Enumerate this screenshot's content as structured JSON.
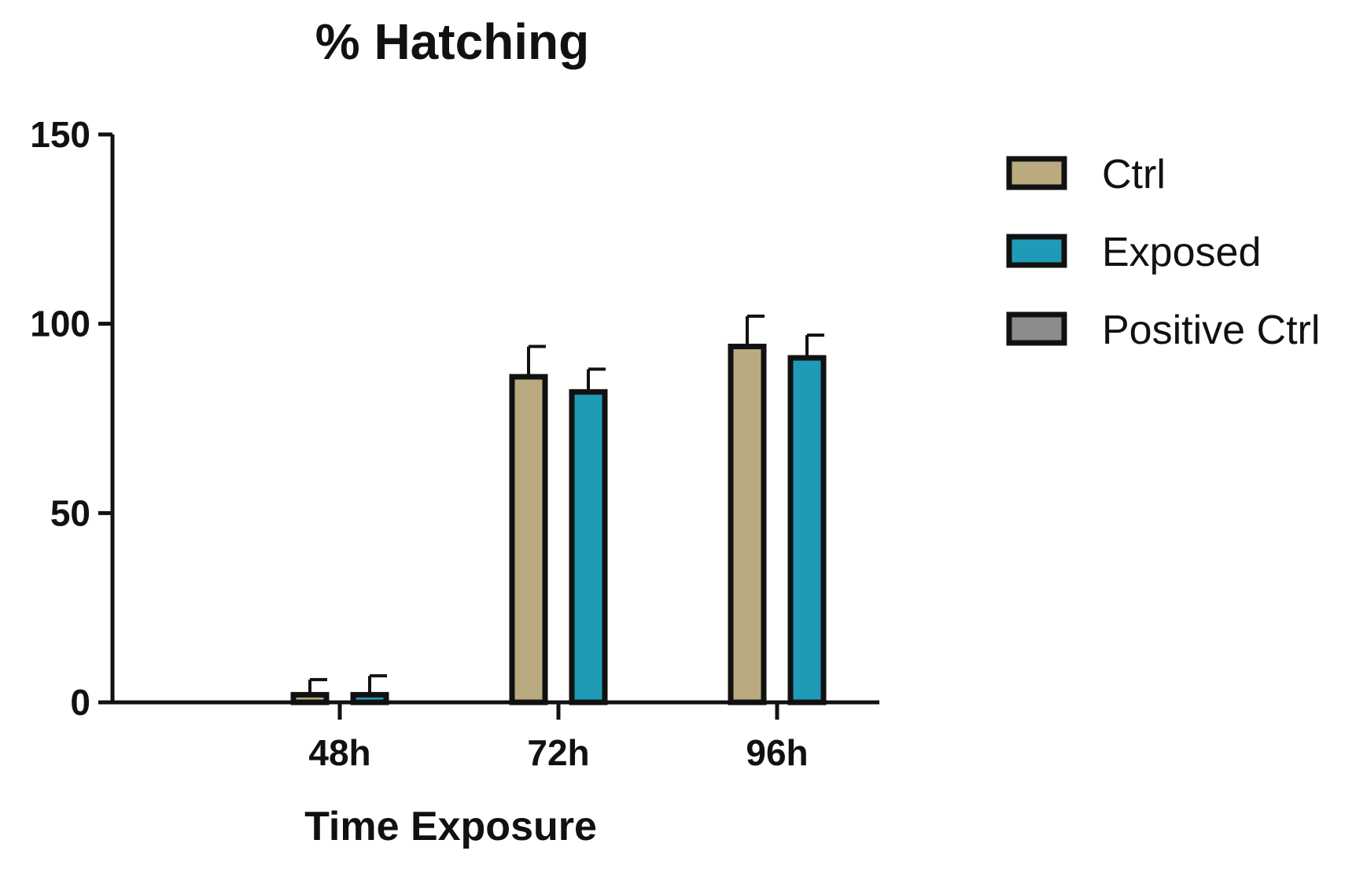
{
  "chart_data": {
    "type": "bar",
    "title": "% Hatching",
    "xlabel": "Time Exposure",
    "ylabel": "",
    "ylim": [
      0,
      150
    ],
    "yticks": [
      0,
      50,
      100,
      150
    ],
    "categories": [
      "48h",
      "72h",
      "96h"
    ],
    "series": [
      {
        "name": "Ctrl",
        "color": "#b9ab7f",
        "values": [
          2,
          86,
          94
        ],
        "errors": [
          4,
          8,
          8
        ]
      },
      {
        "name": "Exposed",
        "color": "#1f9bb7",
        "values": [
          2,
          82,
          91
        ],
        "errors": [
          5,
          6,
          6
        ]
      },
      {
        "name": "Positive Ctrl",
        "color": "#8c8c8c",
        "values": [
          0,
          0,
          0
        ],
        "errors": [
          0,
          0,
          0
        ]
      }
    ],
    "legend_position": "right",
    "grid": false
  }
}
